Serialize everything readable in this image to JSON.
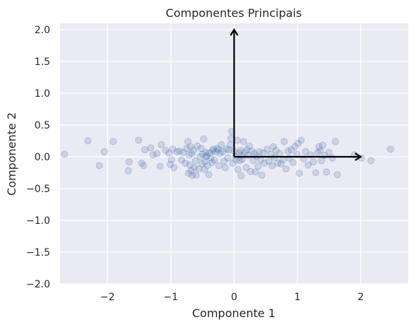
{
  "chart_data": {
    "type": "scatter",
    "title": "Componentes Principais",
    "xlabel": "Componente 1",
    "ylabel": "Componente 2",
    "xlim": [
      -2.75,
      2.75
    ],
    "ylim": [
      -2.0,
      2.1
    ],
    "xticks": [
      -2,
      -1,
      0,
      1,
      2
    ],
    "xtick_labels": [
      "−2",
      "−1",
      "0",
      "1",
      "2"
    ],
    "yticks": [
      -2.0,
      -1.5,
      -1.0,
      -0.5,
      0.0,
      0.5,
      1.0,
      1.5,
      2.0
    ],
    "ytick_labels": [
      "−2.0",
      "−1.5",
      "−1.0",
      "−0.5",
      "0.0",
      "0.5",
      "1.0",
      "1.5",
      "2.0"
    ],
    "grid": true,
    "background": "#eaeaf2",
    "point_color": "#4c72b0",
    "point_alpha": 0.2,
    "arrow_color": "#000000",
    "arrows": [
      {
        "from": [
          0,
          0
        ],
        "to": [
          2.0,
          0.0
        ]
      },
      {
        "from": [
          0,
          0
        ],
        "to": [
          0.0,
          2.0
        ]
      }
    ],
    "points": [
      [
        -2.68,
        0.04
      ],
      [
        -2.31,
        0.25
      ],
      [
        -2.13,
        -0.14
      ],
      [
        -2.05,
        0.08
      ],
      [
        -1.91,
        0.24
      ],
      [
        -1.67,
        -0.22
      ],
      [
        -1.66,
        -0.08
      ],
      [
        -1.51,
        0.26
      ],
      [
        -1.46,
        -0.1
      ],
      [
        -1.43,
        -0.14
      ],
      [
        -1.41,
        0.11
      ],
      [
        -1.32,
        0.14
      ],
      [
        -1.28,
        0.03
      ],
      [
        -1.22,
        0.05
      ],
      [
        -1.17,
        -0.15
      ],
      [
        -1.15,
        0.19
      ],
      [
        -1.08,
        0.1
      ],
      [
        -1.03,
        0.06
      ],
      [
        -1.01,
        -0.12
      ],
      [
        -0.99,
        -0.05
      ],
      [
        -0.97,
        0.12
      ],
      [
        -0.95,
        -0.17
      ],
      [
        -0.9,
        0.08
      ],
      [
        -0.86,
        0.09
      ],
      [
        -0.83,
        -0.05
      ],
      [
        -0.8,
        0.07
      ],
      [
        -0.77,
        -0.1
      ],
      [
        -0.75,
        0.13
      ],
      [
        -0.73,
        0.24
      ],
      [
        -0.72,
        -0.26
      ],
      [
        -0.71,
        0.03
      ],
      [
        -0.7,
        -0.13
      ],
      [
        -0.69,
        0.16
      ],
      [
        -0.68,
        -0.22
      ],
      [
        -0.67,
        0.05
      ],
      [
        -0.66,
        -0.29
      ],
      [
        -0.64,
        0.1
      ],
      [
        -0.63,
        -0.17
      ],
      [
        -0.61,
        -0.06
      ],
      [
        -0.6,
        -0.29
      ],
      [
        -0.58,
        0.17
      ],
      [
        -0.56,
        -0.19
      ],
      [
        -0.54,
        0.0
      ],
      [
        -0.52,
        0.13
      ],
      [
        -0.51,
        -0.11
      ],
      [
        -0.5,
        0.04
      ],
      [
        -0.48,
        0.28
      ],
      [
        -0.47,
        -0.2
      ],
      [
        -0.46,
        -0.08
      ],
      [
        -0.45,
        0.07
      ],
      [
        -0.44,
        0.0
      ],
      [
        -0.43,
        0.02
      ],
      [
        -0.42,
        -0.14
      ],
      [
        -0.4,
        -0.28
      ],
      [
        -0.39,
        0.06
      ],
      [
        -0.37,
        -0.02
      ],
      [
        -0.35,
        -0.09
      ],
      [
        -0.34,
        0.09
      ],
      [
        -0.33,
        0.12
      ],
      [
        -0.31,
        -0.05
      ],
      [
        -0.29,
        0.08
      ],
      [
        -0.27,
        0.13
      ],
      [
        -0.25,
        0.11
      ],
      [
        -0.24,
        -0.14
      ],
      [
        -0.22,
        0.05
      ],
      [
        -0.2,
        0.19
      ],
      [
        -0.18,
        0.08
      ],
      [
        -0.16,
        -0.07
      ],
      [
        -0.14,
        -0.17
      ],
      [
        -0.12,
        0.12
      ],
      [
        -0.1,
        -0.02
      ],
      [
        -0.08,
        0.11
      ],
      [
        -0.06,
        0.19
      ],
      [
        -0.05,
        0.29
      ],
      [
        -0.04,
        0.4
      ],
      [
        -0.02,
        -0.1
      ],
      [
        0.0,
        0.09
      ],
      [
        0.02,
        0.01
      ],
      [
        0.03,
        -0.05
      ],
      [
        0.05,
        0.26
      ],
      [
        0.06,
        -0.2
      ],
      [
        0.08,
        0.06
      ],
      [
        0.09,
        -0.06
      ],
      [
        0.1,
        0.1
      ],
      [
        0.11,
        -0.3
      ],
      [
        0.12,
        0.02
      ],
      [
        0.13,
        -0.04
      ],
      [
        0.15,
        0.24
      ],
      [
        0.17,
        0.07
      ],
      [
        0.19,
        -0.17
      ],
      [
        0.2,
        0.11
      ],
      [
        0.22,
        0.02
      ],
      [
        0.24,
        0.17
      ],
      [
        0.26,
        -0.23
      ],
      [
        0.28,
        0.09
      ],
      [
        0.3,
        -0.06
      ],
      [
        0.32,
        0.05
      ],
      [
        0.34,
        -0.24
      ],
      [
        0.36,
        0.01
      ],
      [
        0.38,
        -0.15
      ],
      [
        0.4,
        0.08
      ],
      [
        0.42,
        -0.05
      ],
      [
        0.44,
        -0.29
      ],
      [
        0.46,
        0.06
      ],
      [
        0.48,
        -0.1
      ],
      [
        0.52,
        0.12
      ],
      [
        0.55,
        -0.07
      ],
      [
        0.58,
        0.04
      ],
      [
        0.6,
        -0.14
      ],
      [
        0.62,
        0.16
      ],
      [
        0.64,
        -0.01
      ],
      [
        0.66,
        0.1
      ],
      [
        0.69,
        -0.1
      ],
      [
        0.72,
        0.05
      ],
      [
        0.74,
        -0.11
      ],
      [
        0.77,
        -0.05
      ],
      [
        0.79,
        0.24
      ],
      [
        0.82,
        -0.19
      ],
      [
        0.85,
        0.09
      ],
      [
        0.87,
        -0.02
      ],
      [
        0.9,
        0.11
      ],
      [
        0.93,
        -0.09
      ],
      [
        0.96,
        0.16
      ],
      [
        0.99,
        0.04
      ],
      [
        1.01,
        0.21
      ],
      [
        1.03,
        -0.26
      ],
      [
        1.06,
        0.26
      ],
      [
        1.1,
        -0.03
      ],
      [
        1.13,
        0.08
      ],
      [
        1.17,
        -0.13
      ],
      [
        1.21,
        0.03
      ],
      [
        1.25,
        -0.08
      ],
      [
        1.29,
        -0.25
      ],
      [
        1.32,
        0.07
      ],
      [
        1.34,
        0.16
      ],
      [
        1.36,
        0.1
      ],
      [
        1.38,
        -0.06
      ],
      [
        1.4,
        0.18
      ],
      [
        1.43,
        0.02
      ],
      [
        1.46,
        -0.24
      ],
      [
        1.5,
        0.07
      ],
      [
        1.55,
        -0.02
      ],
      [
        1.6,
        0.24
      ],
      [
        1.63,
        -0.28
      ],
      [
        1.9,
        0.03
      ],
      [
        2.01,
        -0.02
      ],
      [
        2.16,
        -0.06
      ],
      [
        2.47,
        0.12
      ]
    ]
  }
}
